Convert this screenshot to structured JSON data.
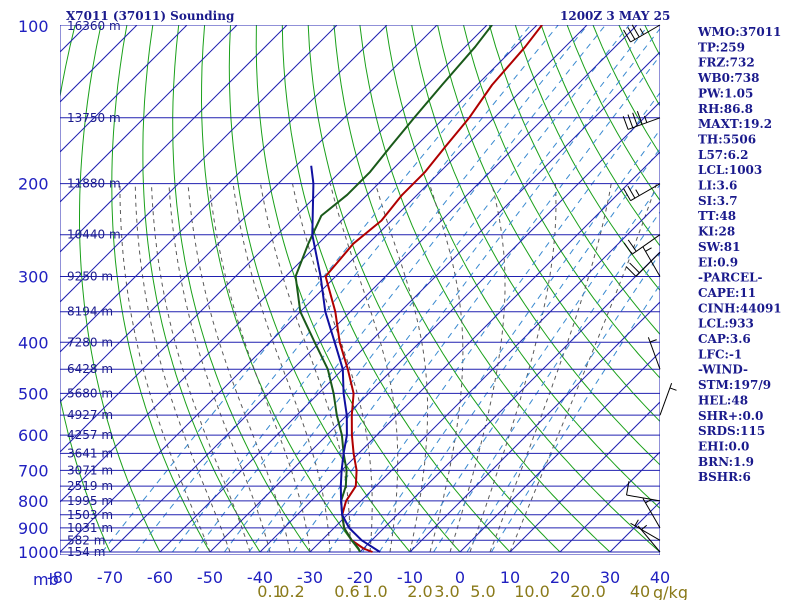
{
  "header": {
    "title": "X7011 (37011) Sounding",
    "datetime": "1200Z  3 MAY 25"
  },
  "chart_data": {
    "type": "skew-t",
    "pressure_unit_label": "mb",
    "mixing_ratio_unit_label": "g/kg",
    "pressure_levels": [
      100,
      200,
      300,
      400,
      500,
      600,
      700,
      800,
      900,
      1000
    ],
    "temperature_ticks": [
      -80,
      -70,
      -60,
      -50,
      -40,
      -30,
      -20,
      -10,
      0,
      10,
      20,
      30,
      40
    ],
    "mixing_ratio_labels": [
      "0.1",
      "0.2",
      "0.6",
      "1.0",
      "2.0",
      "3.0",
      "5.0",
      "10.0",
      "20.0",
      "40"
    ],
    "height_labels": [
      {
        "p": 100,
        "text": "16360 m"
      },
      {
        "p": 150,
        "text": "13750 m"
      },
      {
        "p": 200,
        "text": "11880 m"
      },
      {
        "p": 250,
        "text": "10440 m"
      },
      {
        "p": 300,
        "text": "9250 m"
      },
      {
        "p": 350,
        "text": "8194 m"
      },
      {
        "p": 400,
        "text": "7280 m"
      },
      {
        "p": 450,
        "text": "6428 m"
      },
      {
        "p": 500,
        "text": "5680 m"
      },
      {
        "p": 550,
        "text": "4927 m"
      },
      {
        "p": 600,
        "text": "4257 m"
      },
      {
        "p": 650,
        "text": "3641 m"
      },
      {
        "p": 700,
        "text": "3071 m"
      },
      {
        "p": 750,
        "text": "2519 m"
      },
      {
        "p": 800,
        "text": "1995 m"
      },
      {
        "p": 850,
        "text": "1503 m"
      },
      {
        "p": 900,
        "text": "1031 m"
      },
      {
        "p": 950,
        "text": "582 m"
      },
      {
        "p": 1000,
        "text": "154 m"
      }
    ],
    "series": [
      {
        "role": "temperature",
        "color": "#b00000",
        "points": [
          [
            1000,
            12.5
          ],
          [
            985,
            10
          ],
          [
            950,
            6
          ],
          [
            900,
            2
          ],
          [
            850,
            -1
          ],
          [
            800,
            -3
          ],
          [
            750,
            -4
          ],
          [
            700,
            -7
          ],
          [
            650,
            -11
          ],
          [
            600,
            -15
          ],
          [
            550,
            -19
          ],
          [
            500,
            -23
          ],
          [
            450,
            -29
          ],
          [
            400,
            -36
          ],
          [
            350,
            -43
          ],
          [
            300,
            -52
          ],
          [
            260,
            -53
          ],
          [
            235,
            -52
          ],
          [
            210,
            -53
          ],
          [
            190,
            -53
          ],
          [
            170,
            -54
          ],
          [
            150,
            -55
          ],
          [
            130,
            -57
          ],
          [
            110,
            -58
          ],
          [
            100,
            -59
          ]
        ]
      },
      {
        "role": "dewpoint",
        "color": "#1a5a1a",
        "points": [
          [
            1000,
            10
          ],
          [
            985,
            9
          ],
          [
            950,
            6
          ],
          [
            900,
            2
          ],
          [
            850,
            -1
          ],
          [
            800,
            -4
          ],
          [
            750,
            -6
          ],
          [
            700,
            -9
          ],
          [
            650,
            -13
          ],
          [
            600,
            -17
          ],
          [
            550,
            -22
          ],
          [
            500,
            -27
          ],
          [
            450,
            -33
          ],
          [
            400,
            -41
          ],
          [
            350,
            -50
          ],
          [
            300,
            -58
          ],
          [
            260,
            -62
          ],
          [
            230,
            -65
          ],
          [
            210,
            -64
          ],
          [
            190,
            -64
          ],
          [
            170,
            -65
          ],
          [
            150,
            -66
          ],
          [
            130,
            -67
          ],
          [
            110,
            -68
          ],
          [
            100,
            -69
          ]
        ]
      },
      {
        "role": "parcel",
        "color": "#1010a0",
        "points": [
          [
            1000,
            14
          ],
          [
            950,
            8
          ],
          [
            900,
            3
          ],
          [
            850,
            -1
          ],
          [
            800,
            -4
          ],
          [
            750,
            -7
          ],
          [
            700,
            -10
          ],
          [
            650,
            -13
          ],
          [
            600,
            -16
          ],
          [
            550,
            -20
          ],
          [
            500,
            -25
          ],
          [
            450,
            -30
          ],
          [
            400,
            -37
          ],
          [
            350,
            -45
          ],
          [
            300,
            -53
          ],
          [
            250,
            -63
          ],
          [
            200,
            -73
          ],
          [
            185,
            -77
          ]
        ]
      }
    ],
    "wind_barbs": [
      {
        "p": 100,
        "dir": 240,
        "spd": 35
      },
      {
        "p": 150,
        "dir": 250,
        "spd": 45
      },
      {
        "p": 200,
        "dir": 240,
        "spd": 25
      },
      {
        "p": 250,
        "dir": 235,
        "spd": 20
      },
      {
        "p": 270,
        "dir": 225,
        "spd": 20
      },
      {
        "p": 300,
        "dir": 330,
        "spd": 5
      },
      {
        "p": 450,
        "dir": 340,
        "spd": 5
      },
      {
        "p": 550,
        "dir": 20,
        "spd": 5
      },
      {
        "p": 800,
        "dir": 280,
        "spd": 10
      },
      {
        "p": 900,
        "dir": 330,
        "spd": 5
      },
      {
        "p": 950,
        "dir": 300,
        "spd": 5
      },
      {
        "p": 1000,
        "dir": 320,
        "spd": 5
      }
    ]
  },
  "indices": [
    "WMO:37011",
    "TP:259",
    "FRZ:732",
    "WB0:738",
    "PW:1.05",
    "RH:86.8",
    "MAXT:19.2",
    "TH:5506",
    "L57:6.2",
    "LCL:1003",
    "LI:3.6",
    "SI:3.7",
    "TT:48",
    "KI:28",
    "SW:81",
    "EI:0.9",
    "-PARCEL-",
    "CAPE:11",
    "CINH:44091",
    "LCL:933",
    "CAP:3.6",
    "LFC:-1",
    "-WIND-",
    "STM:197/9",
    "HEL:48",
    "SHR+:0.0",
    "SRDS:115",
    "EHI:0.0",
    "BRN:1.9",
    "BSHR:6"
  ],
  "colors": {
    "isobar": "#2020b0",
    "isotherm": "#2020b0",
    "dry_adiabat": "#1aa01a",
    "moist_adiabat": "#5a5a5a",
    "mixing_ratio": "#3a8ad0",
    "text": "#1a1a8c"
  }
}
